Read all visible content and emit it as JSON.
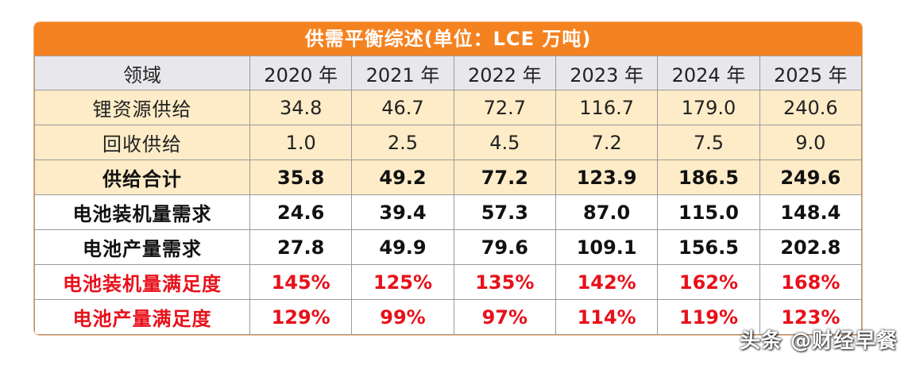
{
  "title": "供需平衡综述(单位：LCE 万吨)",
  "header": {
    "label": "领域",
    "years": [
      "2020 年",
      "2021 年",
      "2022 年",
      "2023 年",
      "2024 年",
      "2025 年"
    ]
  },
  "rows": [
    {
      "label": "锂资源供给",
      "values": [
        "34.8",
        "46.7",
        "72.7",
        "116.7",
        "179.0",
        "240.6"
      ]
    },
    {
      "label": "回收供给",
      "values": [
        "1.0",
        "2.5",
        "4.5",
        "7.2",
        "7.5",
        "9.0"
      ]
    },
    {
      "label": "供给合计",
      "values": [
        "35.8",
        "49.2",
        "77.2",
        "123.9",
        "186.5",
        "249.6"
      ]
    },
    {
      "label": "电池装机量需求",
      "values": [
        "24.6",
        "39.4",
        "57.3",
        "87.0",
        "115.0",
        "148.4"
      ]
    },
    {
      "label": "电池产量需求",
      "values": [
        "27.8",
        "49.9",
        "79.6",
        "109.1",
        "156.5",
        "202.8"
      ]
    },
    {
      "label": "电池装机量满足度",
      "values": [
        "145%",
        "125%",
        "135%",
        "142%",
        "162%",
        "168%"
      ]
    },
    {
      "label": "电池产量满足度",
      "values": [
        "129%",
        "99%",
        "97%",
        "114%",
        "119%",
        "123%"
      ]
    }
  ],
  "watermark": "头条 @财经早餐",
  "colors": {
    "title_bg": "#f58220",
    "header_bg": "#e8e8ec",
    "supply_bg": "#fdecc7",
    "ratio_text": "#e8101a"
  }
}
